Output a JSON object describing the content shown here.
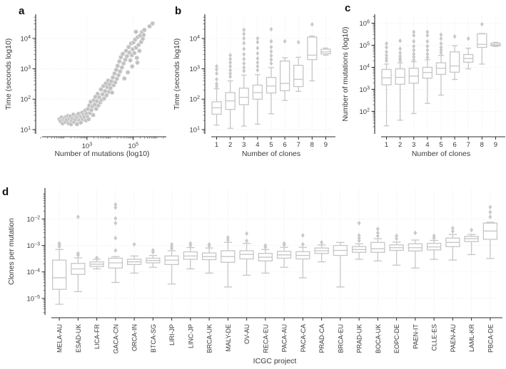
{
  "colors": {
    "background": "#ffffff",
    "box_stroke": "#c6c6c6",
    "flier": "#c9c9c9",
    "point": "#c1c1c1",
    "grid": "#e6e6e6",
    "spine": "#2b2b2b",
    "text": "#3a3a3a"
  },
  "chart_data": [
    {
      "id": "a",
      "panel_letter": "a",
      "type": "scatter",
      "xlabel": "Number of mutations (log10)",
      "ylabel": "Time (seconds log10)",
      "xscale": "log",
      "yscale": "log",
      "xlim": [
        10,
        2000000
      ],
      "ylim": [
        8,
        56000
      ],
      "xticks": [
        1000,
        100000
      ],
      "yticks": [
        10,
        100,
        1000,
        10000
      ],
      "grid": true,
      "points": [
        [
          65,
          22
        ],
        [
          72,
          19
        ],
        [
          80,
          25
        ],
        [
          88,
          16
        ],
        [
          95,
          21
        ],
        [
          105,
          24
        ],
        [
          115,
          18
        ],
        [
          125,
          26
        ],
        [
          135,
          21
        ],
        [
          150,
          28
        ],
        [
          160,
          16
        ],
        [
          175,
          23
        ],
        [
          190,
          27
        ],
        [
          205,
          15
        ],
        [
          220,
          20
        ],
        [
          240,
          24
        ],
        [
          260,
          31
        ],
        [
          280,
          18
        ],
        [
          300,
          25
        ],
        [
          320,
          22
        ],
        [
          350,
          28
        ],
        [
          370,
          15
        ],
        [
          400,
          24
        ],
        [
          430,
          33
        ],
        [
          460,
          20
        ],
        [
          500,
          27
        ],
        [
          540,
          17
        ],
        [
          580,
          25
        ],
        [
          620,
          36
        ],
        [
          670,
          22
        ],
        [
          720,
          30
        ],
        [
          780,
          26
        ],
        [
          840,
          42
        ],
        [
          900,
          20
        ],
        [
          960,
          33
        ],
        [
          1030,
          26
        ],
        [
          1100,
          48
        ],
        [
          1180,
          22
        ],
        [
          1260,
          62
        ],
        [
          1350,
          35
        ],
        [
          1450,
          82
        ],
        [
          1550,
          44
        ],
        [
          1700,
          58
        ],
        [
          1850,
          30
        ],
        [
          2000,
          92
        ],
        [
          2150,
          66
        ],
        [
          2300,
          120
        ],
        [
          2500,
          48
        ],
        [
          2700,
          86
        ],
        [
          2900,
          150
        ],
        [
          3100,
          62
        ],
        [
          3400,
          115
        ],
        [
          3700,
          78
        ],
        [
          4000,
          210
        ],
        [
          4300,
          95
        ],
        [
          4700,
          145
        ],
        [
          5100,
          270
        ],
        [
          5500,
          105
        ],
        [
          6000,
          185
        ],
        [
          6500,
          330
        ],
        [
          7000,
          135
        ],
        [
          7600,
          250
        ],
        [
          8200,
          410
        ],
        [
          8900,
          175
        ],
        [
          9600,
          310
        ],
        [
          10400,
          230
        ],
        [
          11200,
          390
        ],
        [
          12100,
          165
        ],
        [
          13100,
          520
        ],
        [
          14200,
          290
        ],
        [
          15400,
          700
        ],
        [
          16700,
          360
        ],
        [
          18100,
          930
        ],
        [
          19600,
          470
        ],
        [
          21000,
          1250
        ],
        [
          23000,
          620
        ],
        [
          25000,
          1750
        ],
        [
          27000,
          820
        ],
        [
          29000,
          2400
        ],
        [
          32000,
          1100
        ],
        [
          35000,
          3100
        ],
        [
          38000,
          1500
        ],
        [
          41000,
          480
        ],
        [
          45000,
          2000
        ],
        [
          49000,
          3900
        ],
        [
          53000,
          2600
        ],
        [
          58000,
          760
        ],
        [
          63000,
          5200
        ],
        [
          68000,
          3400
        ],
        [
          74000,
          1900
        ],
        [
          80000,
          6800
        ],
        [
          87000,
          2800
        ],
        [
          94000,
          4400
        ],
        [
          102000,
          7400
        ],
        [
          111000,
          3300
        ],
        [
          120000,
          9200
        ],
        [
          131000,
          5000
        ],
        [
          142000,
          2300
        ],
        [
          155000,
          11000
        ],
        [
          168000,
          6100
        ],
        [
          183000,
          3900
        ],
        [
          199000,
          12500
        ],
        [
          217000,
          7600
        ],
        [
          236000,
          16000
        ],
        [
          257000,
          9700
        ],
        [
          280000,
          13000
        ],
        [
          500000,
          25000
        ],
        [
          680000,
          31000
        ],
        [
          150000,
          1600
        ],
        [
          300000,
          19000
        ],
        [
          90000,
          1200
        ],
        [
          130000,
          16500
        ]
      ]
    },
    {
      "id": "b",
      "panel_letter": "b",
      "type": "box",
      "xlabel": "Number of clones",
      "ylabel": "Time (seconds log10)",
      "yscale": "log",
      "ylim": [
        8,
        56000
      ],
      "yticks": [
        10,
        100,
        1000,
        10000
      ],
      "grid": true,
      "categories": [
        "1",
        "2",
        "3",
        "4",
        "5",
        "6",
        "7",
        "8",
        "9"
      ],
      "boxes": [
        {
          "whislo": 14,
          "q1": 32,
          "med": 52,
          "q3": 82,
          "whishi": 220,
          "outliers": [
            260,
            320,
            450,
            700,
            950,
            1200
          ]
        },
        {
          "whislo": 11,
          "q1": 46,
          "med": 88,
          "q3": 165,
          "whishi": 400,
          "outliers": [
            550,
            700,
            900,
            1200,
            1600,
            2100,
            2800
          ]
        },
        {
          "whislo": 13,
          "q1": 66,
          "med": 115,
          "q3": 230,
          "whishi": 620,
          "outliers": [
            850,
            1100,
            1500,
            2100,
            3000,
            4500,
            7000,
            10000,
            14000,
            19000
          ]
        },
        {
          "whislo": 15,
          "q1": 100,
          "med": 165,
          "q3": 290,
          "whishi": 640,
          "outliers": [
            900,
            1200,
            1600,
            2200,
            3200,
            4800,
            7500,
            10000
          ]
        },
        {
          "whislo": 33,
          "q1": 160,
          "med": 270,
          "q3": 520,
          "whishi": 1100,
          "outliers": [
            1500,
            2000,
            2700,
            3700,
            5200,
            8000,
            20000
          ]
        },
        {
          "whislo": 90,
          "q1": 190,
          "med": 330,
          "q3": 1800,
          "whishi": 2300,
          "outliers": [
            8000
          ]
        },
        {
          "whislo": 180,
          "q1": 260,
          "med": 450,
          "q3": 1300,
          "whishi": 2400,
          "outliers": [
            7500
          ]
        },
        {
          "whislo": 400,
          "q1": 2000,
          "med": 2800,
          "q3": 11000,
          "whishi": 12000,
          "outliers": [
            29000
          ]
        },
        {
          "whislo": 2800,
          "q1": 3100,
          "med": 3600,
          "q3": 4400,
          "whishi": 4800,
          "outliers": []
        }
      ]
    },
    {
      "id": "c",
      "panel_letter": "c",
      "type": "box",
      "xlabel": "Number of clones",
      "ylabel": "Number of mutations (log10)",
      "yscale": "log",
      "ylim": [
        11,
        2200000
      ],
      "yticks": [
        100,
        1000,
        10000,
        100000,
        1000000
      ],
      "grid": true,
      "categories": [
        "1",
        "2",
        "3",
        "4",
        "5",
        "6",
        "7",
        "8",
        "9"
      ],
      "boxes": [
        {
          "whislo": 22,
          "q1": 1600,
          "med": 3300,
          "q3": 8000,
          "whishi": 14000,
          "outliers": [
            20000,
            26000,
            35000,
            50000,
            80000,
            120000
          ]
        },
        {
          "whislo": 40,
          "q1": 1700,
          "med": 3500,
          "q3": 8500,
          "whishi": 16000,
          "outliers": [
            20000,
            25000,
            32000,
            45000,
            70000,
            160000
          ]
        },
        {
          "whislo": 80,
          "q1": 1900,
          "med": 4000,
          "q3": 9000,
          "whishi": 18000,
          "outliers": [
            22000,
            30000,
            40000,
            60000,
            90000,
            150000,
            280000,
            400000
          ]
        },
        {
          "whislo": 230,
          "q1": 3200,
          "med": 5800,
          "q3": 10000,
          "whishi": 22000,
          "outliers": [
            28000,
            40000,
            60000,
            90000,
            150000,
            280000,
            400000
          ]
        },
        {
          "whislo": 550,
          "q1": 4800,
          "med": 9000,
          "q3": 16000,
          "whishi": 35000,
          "outliers": [
            45000,
            60000,
            80000,
            120000,
            200000,
            300000
          ]
        },
        {
          "whislo": 2800,
          "q1": 6000,
          "med": 11500,
          "q3": 50000,
          "whishi": 95000,
          "outliers": [
            250000
          ]
        },
        {
          "whislo": 8500,
          "q1": 17000,
          "med": 25000,
          "q3": 38000,
          "whishi": 74000,
          "outliers": [
            200000
          ]
        },
        {
          "whislo": 14000,
          "q1": 80000,
          "med": 110000,
          "q3": 330000,
          "whishi": 340000,
          "outliers": [
            900000
          ]
        },
        {
          "whislo": 88000,
          "q1": 95000,
          "med": 105000,
          "q3": 125000,
          "whishi": 135000,
          "outliers": []
        }
      ]
    },
    {
      "id": "d",
      "panel_letter": "d",
      "type": "box",
      "xlabel": "ICGC project",
      "ylabel": "Clones per mutation",
      "yscale": "log",
      "ylim": [
        2.7e-06,
        0.13
      ],
      "yticks": [
        1e-05,
        0.0001,
        0.001,
        0.01
      ],
      "grid": true,
      "tick_label_rotation": 90,
      "categories": [
        "MELA-AU",
        "ESAD-UK",
        "LICA-FR",
        "GACA-CN",
        "ORCA-IN",
        "BTCA-SG",
        "LIRI-JP",
        "LINC-JP",
        "BRCA-UK",
        "MALY-DE",
        "OV-AU",
        "RECA-EU",
        "PACA-AU",
        "PACA-CA",
        "PRAD-CA",
        "BRCA-EU",
        "PRAD-UK",
        "BOCA-UK",
        "EOPC-DE",
        "PAEN-IT",
        "CLLE-ES",
        "PAEN-AU",
        "LAML-KR",
        "PBCA-DE"
      ],
      "boxes": [
        {
          "whislo": 6e-06,
          "q1": 2.2e-05,
          "med": 6e-05,
          "q3": 0.00028,
          "whishi": 0.0007,
          "outliers": [
            0.0009,
            0.00105,
            0.0012
          ]
        },
        {
          "whislo": 1.8e-05,
          "q1": 8e-05,
          "med": 0.00013,
          "q3": 0.00021,
          "whishi": 0.00034,
          "outliers": [
            0.00043,
            0.0005,
            0.012
          ]
        },
        {
          "whislo": 0.00013,
          "q1": 0.00016,
          "med": 0.000195,
          "q3": 0.00024,
          "whishi": 0.0003,
          "outliers": [
            0.00034
          ]
        },
        {
          "whislo": 4e-05,
          "q1": 0.00014,
          "med": 0.00022,
          "q3": 0.00033,
          "whishi": 0.00038,
          "outliers": [
            0.00065,
            0.0019,
            0.007,
            0.0105,
            0.027,
            0.035
          ]
        },
        {
          "whislo": 9e-05,
          "q1": 0.00019,
          "med": 0.00024,
          "q3": 0.0003,
          "whishi": 0.0004,
          "outliers": [
            0.0011
          ]
        },
        {
          "whislo": 0.00015,
          "q1": 0.00022,
          "med": 0.00027,
          "q3": 0.00033,
          "whishi": 0.00042,
          "outliers": [
            0.00056,
            0.00066
          ]
        },
        {
          "whislo": 3.5e-05,
          "q1": 0.00019,
          "med": 0.00028,
          "q3": 0.0004,
          "whishi": 0.00063,
          "outliers": [
            0.00076,
            0.0009,
            0.0011
          ]
        },
        {
          "whislo": 0.00013,
          "q1": 0.0003,
          "med": 0.0004,
          "q3": 0.00057,
          "whishi": 0.00083,
          "outliers": [
            0.001,
            0.0012
          ]
        },
        {
          "whislo": 9e-05,
          "q1": 0.00029,
          "med": 0.00038,
          "q3": 0.00052,
          "whishi": 0.0008,
          "outliers": [
            0.00096,
            0.0011
          ]
        },
        {
          "whislo": 2.7e-05,
          "q1": 0.00023,
          "med": 0.00038,
          "q3": 0.00063,
          "whishi": 0.0013,
          "outliers": [
            0.0016,
            0.002
          ]
        },
        {
          "whislo": 7.5e-05,
          "q1": 0.00031,
          "med": 0.00046,
          "q3": 0.00063,
          "whishi": 0.0012,
          "outliers": [
            0.0015,
            0.0028
          ]
        },
        {
          "whislo": 9e-05,
          "q1": 0.00026,
          "med": 0.00036,
          "q3": 0.0005,
          "whishi": 0.0007,
          "outliers": [
            0.00085,
            0.001
          ]
        },
        {
          "whislo": 0.00015,
          "q1": 0.00033,
          "med": 0.00044,
          "q3": 0.0006,
          "whishi": 0.00085,
          "outliers": [
            0.00105,
            0.0012
          ]
        },
        {
          "whislo": 6e-05,
          "q1": 0.00031,
          "med": 0.00042,
          "q3": 0.00058,
          "whishi": 0.00085,
          "outliers": [
            0.0011,
            0.0024
          ]
        },
        {
          "whislo": 0.00024,
          "q1": 0.0005,
          "med": 0.00063,
          "q3": 0.0008,
          "whishi": 0.00105,
          "outliers": [
            0.0013
          ]
        },
        {
          "whislo": 2.7e-05,
          "q1": 0.00042,
          "med": 0.00065,
          "q3": 0.001,
          "whishi": 0.0013,
          "outliers": []
        },
        {
          "whislo": 0.0003,
          "q1": 0.00055,
          "med": 0.0007,
          "q3": 0.0009,
          "whishi": 0.00115,
          "outliers": [
            0.0015,
            0.0019,
            0.0024,
            0.007
          ]
        },
        {
          "whislo": 0.00026,
          "q1": 0.00055,
          "med": 0.00075,
          "q3": 0.0013,
          "whishi": 0.0018,
          "outliers": [
            0.0023,
            0.003,
            0.0042
          ]
        },
        {
          "whislo": 0.00018,
          "q1": 0.00065,
          "med": 0.00082,
          "q3": 0.00105,
          "whishi": 0.00135,
          "outliers": [
            0.0018,
            0.0023
          ]
        },
        {
          "whislo": 0.00014,
          "q1": 0.00062,
          "med": 0.00082,
          "q3": 0.00115,
          "whishi": 0.0016,
          "outliers": [
            0.003
          ]
        },
        {
          "whislo": 0.0003,
          "q1": 0.00068,
          "med": 0.00088,
          "q3": 0.0012,
          "whishi": 0.00155,
          "outliers": [
            0.0019,
            0.0023
          ]
        },
        {
          "whislo": 0.00028,
          "q1": 0.0009,
          "med": 0.0013,
          "q3": 0.0019,
          "whishi": 0.0026,
          "outliers": [
            0.0034,
            0.0045
          ]
        },
        {
          "whislo": 0.00045,
          "q1": 0.0014,
          "med": 0.0018,
          "q3": 0.0022,
          "whishi": 0.0026,
          "outliers": [
            0.0038
          ]
        },
        {
          "whislo": 0.00032,
          "q1": 0.0017,
          "med": 0.0035,
          "q3": 0.007,
          "whishi": 0.0075,
          "outliers": [
            0.012,
            0.018,
            0.028
          ]
        }
      ]
    }
  ]
}
